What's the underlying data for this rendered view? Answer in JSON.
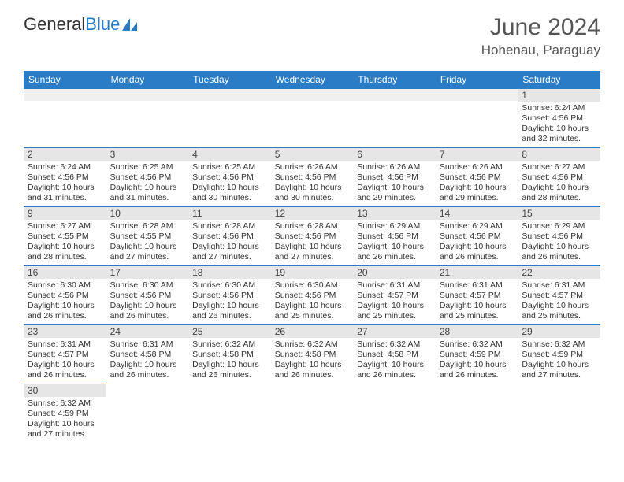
{
  "logo": {
    "text_general": "General",
    "text_blue": "Blue"
  },
  "title": {
    "month": "June 2024",
    "location": "Hohenau, Paraguay"
  },
  "weekdays": [
    "Sunday",
    "Monday",
    "Tuesday",
    "Wednesday",
    "Thursday",
    "Friday",
    "Saturday"
  ],
  "colors": {
    "header_bg": "#2a7cc7",
    "header_text": "#ffffff",
    "daynum_bg": "#e6e6e6",
    "border": "#2a7cc7",
    "body_text": "#333333",
    "title_text": "#555555"
  },
  "fonts": {
    "title_month_size_pt": 22,
    "title_location_size_pt": 13,
    "weekday_size_pt": 9,
    "daynum_size_pt": 9,
    "body_size_pt": 8
  },
  "weeks": [
    [
      {
        "empty": true
      },
      {
        "empty": true
      },
      {
        "empty": true
      },
      {
        "empty": true
      },
      {
        "empty": true
      },
      {
        "empty": true
      },
      {
        "day": "1",
        "sunrise": "Sunrise: 6:24 AM",
        "sunset": "Sunset: 4:56 PM",
        "daylight1": "Daylight: 10 hours",
        "daylight2": "and 32 minutes."
      }
    ],
    [
      {
        "day": "2",
        "sunrise": "Sunrise: 6:24 AM",
        "sunset": "Sunset: 4:56 PM",
        "daylight1": "Daylight: 10 hours",
        "daylight2": "and 31 minutes."
      },
      {
        "day": "3",
        "sunrise": "Sunrise: 6:25 AM",
        "sunset": "Sunset: 4:56 PM",
        "daylight1": "Daylight: 10 hours",
        "daylight2": "and 31 minutes."
      },
      {
        "day": "4",
        "sunrise": "Sunrise: 6:25 AM",
        "sunset": "Sunset: 4:56 PM",
        "daylight1": "Daylight: 10 hours",
        "daylight2": "and 30 minutes."
      },
      {
        "day": "5",
        "sunrise": "Sunrise: 6:26 AM",
        "sunset": "Sunset: 4:56 PM",
        "daylight1": "Daylight: 10 hours",
        "daylight2": "and 30 minutes."
      },
      {
        "day": "6",
        "sunrise": "Sunrise: 6:26 AM",
        "sunset": "Sunset: 4:56 PM",
        "daylight1": "Daylight: 10 hours",
        "daylight2": "and 29 minutes."
      },
      {
        "day": "7",
        "sunrise": "Sunrise: 6:26 AM",
        "sunset": "Sunset: 4:56 PM",
        "daylight1": "Daylight: 10 hours",
        "daylight2": "and 29 minutes."
      },
      {
        "day": "8",
        "sunrise": "Sunrise: 6:27 AM",
        "sunset": "Sunset: 4:56 PM",
        "daylight1": "Daylight: 10 hours",
        "daylight2": "and 28 minutes."
      }
    ],
    [
      {
        "day": "9",
        "sunrise": "Sunrise: 6:27 AM",
        "sunset": "Sunset: 4:55 PM",
        "daylight1": "Daylight: 10 hours",
        "daylight2": "and 28 minutes."
      },
      {
        "day": "10",
        "sunrise": "Sunrise: 6:28 AM",
        "sunset": "Sunset: 4:55 PM",
        "daylight1": "Daylight: 10 hours",
        "daylight2": "and 27 minutes."
      },
      {
        "day": "11",
        "sunrise": "Sunrise: 6:28 AM",
        "sunset": "Sunset: 4:56 PM",
        "daylight1": "Daylight: 10 hours",
        "daylight2": "and 27 minutes."
      },
      {
        "day": "12",
        "sunrise": "Sunrise: 6:28 AM",
        "sunset": "Sunset: 4:56 PM",
        "daylight1": "Daylight: 10 hours",
        "daylight2": "and 27 minutes."
      },
      {
        "day": "13",
        "sunrise": "Sunrise: 6:29 AM",
        "sunset": "Sunset: 4:56 PM",
        "daylight1": "Daylight: 10 hours",
        "daylight2": "and 26 minutes."
      },
      {
        "day": "14",
        "sunrise": "Sunrise: 6:29 AM",
        "sunset": "Sunset: 4:56 PM",
        "daylight1": "Daylight: 10 hours",
        "daylight2": "and 26 minutes."
      },
      {
        "day": "15",
        "sunrise": "Sunrise: 6:29 AM",
        "sunset": "Sunset: 4:56 PM",
        "daylight1": "Daylight: 10 hours",
        "daylight2": "and 26 minutes."
      }
    ],
    [
      {
        "day": "16",
        "sunrise": "Sunrise: 6:30 AM",
        "sunset": "Sunset: 4:56 PM",
        "daylight1": "Daylight: 10 hours",
        "daylight2": "and 26 minutes."
      },
      {
        "day": "17",
        "sunrise": "Sunrise: 6:30 AM",
        "sunset": "Sunset: 4:56 PM",
        "daylight1": "Daylight: 10 hours",
        "daylight2": "and 26 minutes."
      },
      {
        "day": "18",
        "sunrise": "Sunrise: 6:30 AM",
        "sunset": "Sunset: 4:56 PM",
        "daylight1": "Daylight: 10 hours",
        "daylight2": "and 26 minutes."
      },
      {
        "day": "19",
        "sunrise": "Sunrise: 6:30 AM",
        "sunset": "Sunset: 4:56 PM",
        "daylight1": "Daylight: 10 hours",
        "daylight2": "and 25 minutes."
      },
      {
        "day": "20",
        "sunrise": "Sunrise: 6:31 AM",
        "sunset": "Sunset: 4:57 PM",
        "daylight1": "Daylight: 10 hours",
        "daylight2": "and 25 minutes."
      },
      {
        "day": "21",
        "sunrise": "Sunrise: 6:31 AM",
        "sunset": "Sunset: 4:57 PM",
        "daylight1": "Daylight: 10 hours",
        "daylight2": "and 25 minutes."
      },
      {
        "day": "22",
        "sunrise": "Sunrise: 6:31 AM",
        "sunset": "Sunset: 4:57 PM",
        "daylight1": "Daylight: 10 hours",
        "daylight2": "and 25 minutes."
      }
    ],
    [
      {
        "day": "23",
        "sunrise": "Sunrise: 6:31 AM",
        "sunset": "Sunset: 4:57 PM",
        "daylight1": "Daylight: 10 hours",
        "daylight2": "and 26 minutes."
      },
      {
        "day": "24",
        "sunrise": "Sunrise: 6:31 AM",
        "sunset": "Sunset: 4:58 PM",
        "daylight1": "Daylight: 10 hours",
        "daylight2": "and 26 minutes."
      },
      {
        "day": "25",
        "sunrise": "Sunrise: 6:32 AM",
        "sunset": "Sunset: 4:58 PM",
        "daylight1": "Daylight: 10 hours",
        "daylight2": "and 26 minutes."
      },
      {
        "day": "26",
        "sunrise": "Sunrise: 6:32 AM",
        "sunset": "Sunset: 4:58 PM",
        "daylight1": "Daylight: 10 hours",
        "daylight2": "and 26 minutes."
      },
      {
        "day": "27",
        "sunrise": "Sunrise: 6:32 AM",
        "sunset": "Sunset: 4:58 PM",
        "daylight1": "Daylight: 10 hours",
        "daylight2": "and 26 minutes."
      },
      {
        "day": "28",
        "sunrise": "Sunrise: 6:32 AM",
        "sunset": "Sunset: 4:59 PM",
        "daylight1": "Daylight: 10 hours",
        "daylight2": "and 26 minutes."
      },
      {
        "day": "29",
        "sunrise": "Sunrise: 6:32 AM",
        "sunset": "Sunset: 4:59 PM",
        "daylight1": "Daylight: 10 hours",
        "daylight2": "and 27 minutes."
      }
    ],
    [
      {
        "day": "30",
        "sunrise": "Sunrise: 6:32 AM",
        "sunset": "Sunset: 4:59 PM",
        "daylight1": "Daylight: 10 hours",
        "daylight2": "and 27 minutes."
      },
      {
        "empty": true,
        "noborder": true
      },
      {
        "empty": true,
        "noborder": true
      },
      {
        "empty": true,
        "noborder": true
      },
      {
        "empty": true,
        "noborder": true
      },
      {
        "empty": true,
        "noborder": true
      },
      {
        "empty": true,
        "noborder": true
      }
    ]
  ]
}
